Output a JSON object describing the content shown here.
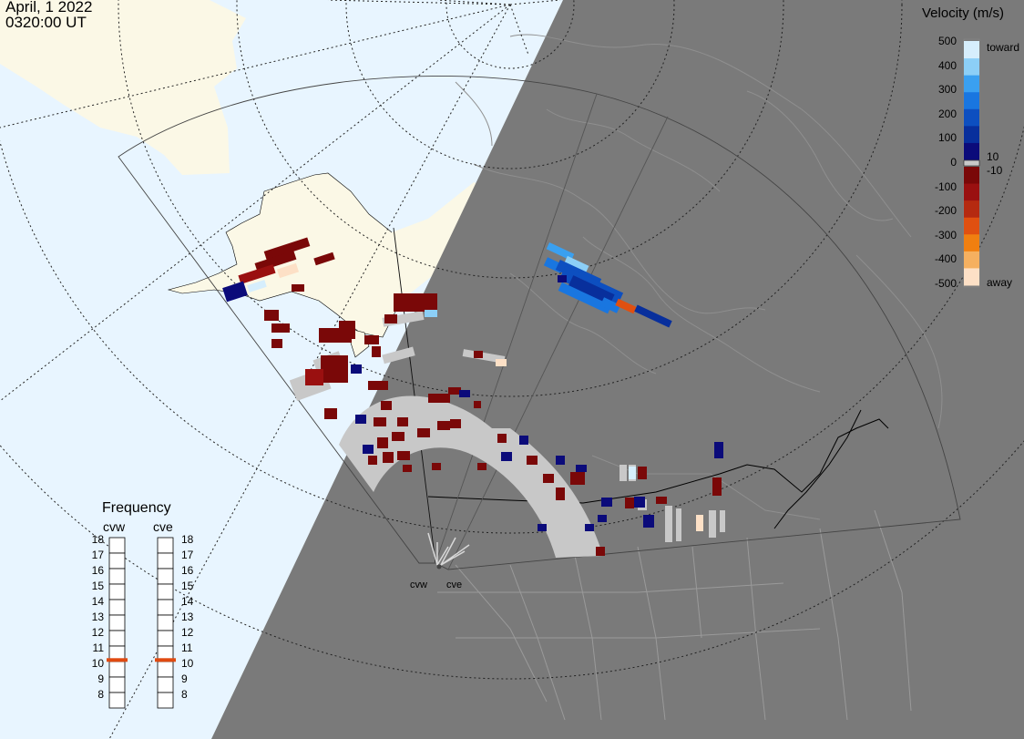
{
  "header": {
    "date": "April, 1 2022",
    "time": "0320:00 UT"
  },
  "colorbar": {
    "title": "Velocity (m/s)",
    "ticks": [
      {
        "label": "500",
        "value": 500
      },
      {
        "label": "400",
        "value": 400
      },
      {
        "label": "300",
        "value": 300
      },
      {
        "label": "200",
        "value": 200
      },
      {
        "label": "100",
        "value": 100
      },
      {
        "label": "0",
        "value": 0
      },
      {
        "label": "-100",
        "value": -100
      },
      {
        "label": "-200",
        "value": -200
      },
      {
        "label": "-300",
        "value": -300
      },
      {
        "label": "-400",
        "value": -400
      },
      {
        "label": "-500",
        "value": -500
      }
    ],
    "inner_labels": [
      "10",
      "-10"
    ],
    "top_label": "toward",
    "bottom_label": "away",
    "colors_toward": [
      "#0b0b7a",
      "#082f9c",
      "#0d4fc0",
      "#1976e0",
      "#3aa0f0",
      "#8ccff7",
      "#d6eefc"
    ],
    "colors_away": [
      "#7a0808",
      "#9a1010",
      "#b52a10",
      "#e05010",
      "#f07f10",
      "#f5b060",
      "#fde0c6"
    ],
    "ground_scatter": "#c8c8c8"
  },
  "frequency": {
    "title": "Frequency",
    "radars": [
      "cvw",
      "cve"
    ],
    "scale": [
      "18",
      "17",
      "16",
      "15",
      "14",
      "13",
      "12",
      "11",
      "10",
      "9",
      "8"
    ],
    "marker_value_mhz": 10.6,
    "marker_color": "#e04a10"
  },
  "sites": [
    "cvw",
    "cve"
  ],
  "map_colors": {
    "ocean": "#e8f5ff",
    "land": "#fbf8e6",
    "night": "#7a7a7a"
  }
}
